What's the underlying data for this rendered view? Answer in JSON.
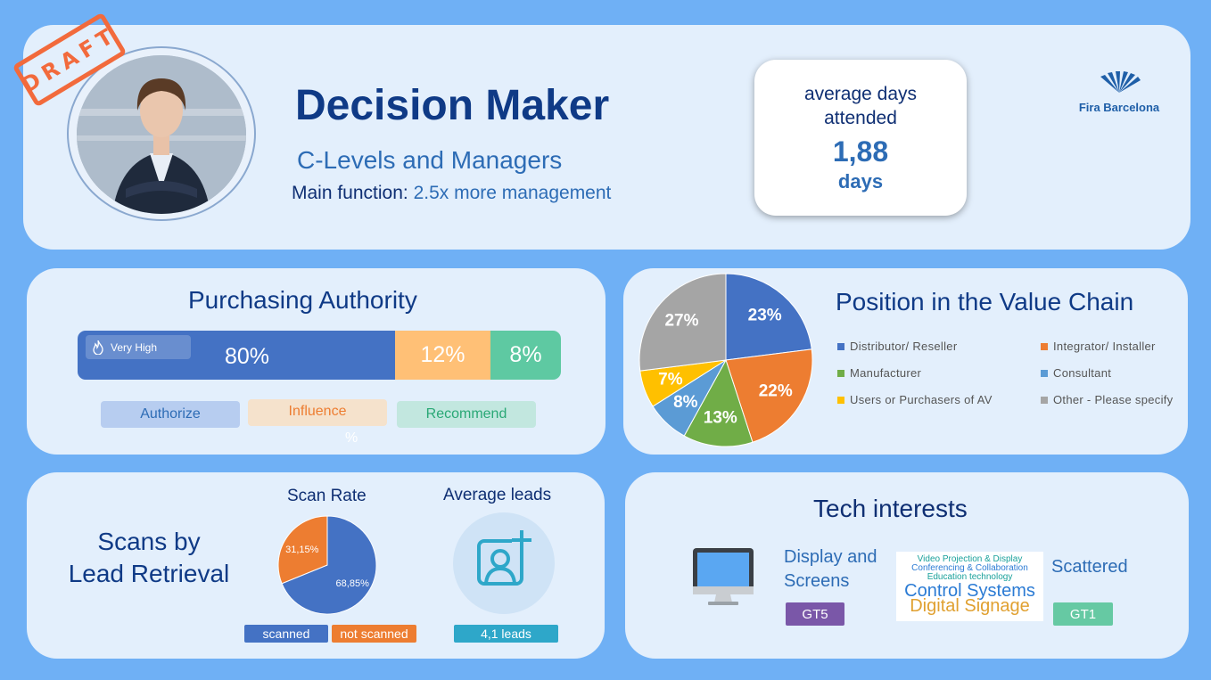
{
  "header": {
    "stamp": "DRAFT",
    "title": "Decision Maker",
    "subtitle": "C-Levels and Managers",
    "main_function_label": "Main function:",
    "main_function_value": "2.5x more management",
    "days_label": "average days attended",
    "days_value": "1,88",
    "days_unit": "days",
    "logo_text": "Fira Barcelona"
  },
  "purchasing": {
    "title": "Purchasing Authority",
    "badge": "Very High",
    "segments": [
      {
        "label": "80%",
        "value": 80,
        "color": "#4472c4"
      },
      {
        "label": "12%",
        "value": 12,
        "color": "#ffc076"
      },
      {
        "label": "8%",
        "value": 8,
        "color": "#5ec9a2"
      }
    ],
    "legend": [
      "Authorize",
      "Influence",
      "Recommend"
    ],
    "stray_pct": "%"
  },
  "valuechain": {
    "title": "Position in the Value Chain",
    "legend": [
      {
        "label": "Distributor/ Reseller",
        "color": "#4472c4"
      },
      {
        "label": "Integrator/ Installer",
        "color": "#ed7d31"
      },
      {
        "label": "Manufacturer",
        "color": "#70ad47"
      },
      {
        "label": "Consultant",
        "color": "#5b9bd5"
      },
      {
        "label": "Users or Purchasers of AV",
        "color": "#ffc000"
      },
      {
        "label": "Other - Please specify",
        "color": "#a5a5a5"
      }
    ]
  },
  "scans": {
    "title_line1": "Scans by",
    "title_line2": "Lead Retrieval",
    "scan_rate_title": "Scan Rate",
    "avg_leads_title": "Average leads",
    "scanned_label": "scanned",
    "not_scanned_label": "not scanned",
    "leads_value": "4,1 leads"
  },
  "tech": {
    "title": "Tech interests",
    "item1_line1": "Display and",
    "item1_line2": "Screens",
    "tag1": "GT5",
    "item2": "Scattered",
    "tag2": "GT1",
    "wordcloud": [
      "Video Projection & Display",
      "Conferencing & Collaboration",
      "Education technology",
      "Control Systems",
      "Digital Signage"
    ],
    "icon": "monitor-icon"
  },
  "chart_data": [
    {
      "type": "pie",
      "title": "Position in the Value Chain",
      "categories": [
        "Distributor/ Reseller",
        "Integrator/ Installer",
        "Manufacturer",
        "Consultant",
        "Users or Purchasers of AV",
        "Other - Please specify"
      ],
      "values": [
        23,
        22,
        13,
        8,
        7,
        27
      ],
      "labels": [
        "23%",
        "22%",
        "13%",
        "8%",
        "7%",
        "27%"
      ],
      "colors": [
        "#4472c4",
        "#ed7d31",
        "#70ad47",
        "#5b9bd5",
        "#ffc000",
        "#a5a5a5"
      ]
    },
    {
      "type": "pie",
      "title": "Scan Rate",
      "categories": [
        "scanned",
        "not scanned"
      ],
      "values": [
        68.85,
        31.15
      ],
      "labels": [
        "68,85%",
        "31,15%"
      ],
      "colors": [
        "#4472c4",
        "#ed7d31"
      ]
    }
  ]
}
